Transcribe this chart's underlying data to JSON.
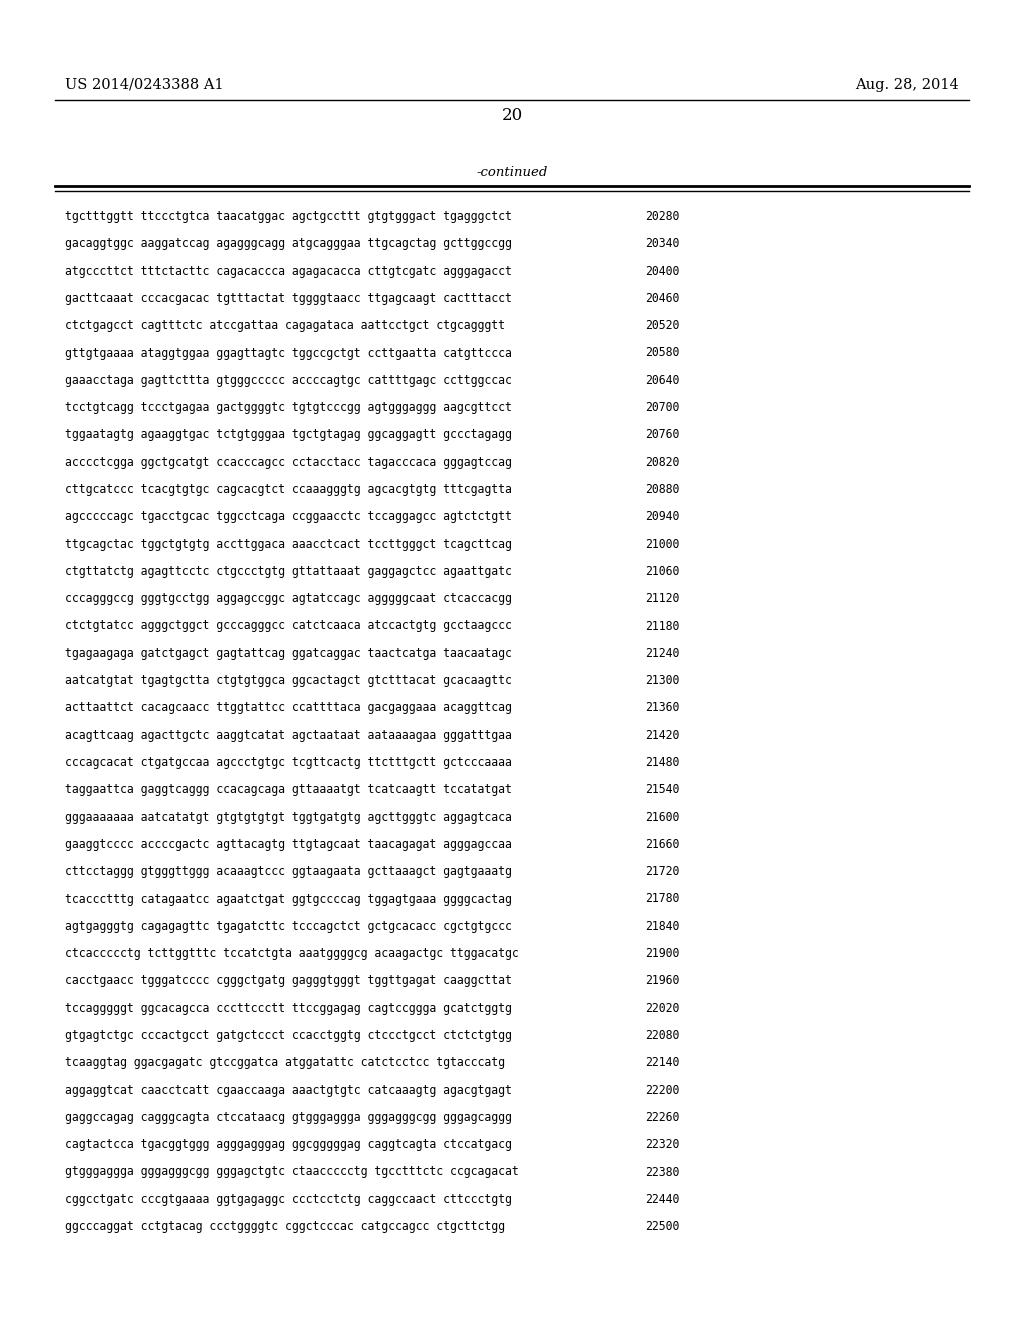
{
  "header_left": "US 2014/0243388 A1",
  "header_right": "Aug. 28, 2014",
  "page_number": "20",
  "continued_label": "-continued",
  "background_color": "#ffffff",
  "text_color": "#000000",
  "lines": [
    [
      "tgctttggtt ttccctgtca taacatggac agctgccttt gtgtgggact tgagggctct",
      "20280"
    ],
    [
      "gacaggtggc aaggatccag agagggcagg atgcagggaa ttgcagctag gcttggccgg",
      "20340"
    ],
    [
      "atgcccttct tttctacttc cagacaccca agagacacca cttgtcgatc agggagacct",
      "20400"
    ],
    [
      "gacttcaaat cccacgacac tgtttactat tggggtaacc ttgagcaagt cactttacct",
      "20460"
    ],
    [
      "ctctgagcct cagtttctc atccgattaa cagagataca aattcctgct ctgcagggtt",
      "20520"
    ],
    [
      "gttgtgaaaa ataggtggaa ggagttagtc tggccgctgt ccttgaatta catgttccca",
      "20580"
    ],
    [
      "gaaacctaga gagttcttta gtgggccccc accccagtgc cattttgagc ccttggccac",
      "20640"
    ],
    [
      "tcctgtcagg tccctgagaa gactggggtc tgtgtcccgg agtgggaggg aagcgttcct",
      "20700"
    ],
    [
      "tggaatagtg agaaggtgac tctgtgggaa tgctgtagag ggcaggagtt gccctagagg",
      "20760"
    ],
    [
      "acccctcgga ggctgcatgt ccacccagcc cctacctacc tagacccaca gggagtccag",
      "20820"
    ],
    [
      "cttgcatccc tcacgtgtgc cagcacgtct ccaaagggtg agcacgtgtg tttcgagtta",
      "20880"
    ],
    [
      "agcccccagc tgacctgcac tggcctcaga ccggaacctc tccaggagcc agtctctgtt",
      "20940"
    ],
    [
      "ttgcagctac tggctgtgtg accttggaca aaacctcact tccttgggct tcagcttcag",
      "21000"
    ],
    [
      "ctgttatctg agagttcctc ctgccctgtg gttattaaat gaggagctcc agaattgatc",
      "21060"
    ],
    [
      "cccagggccg gggtgcctgg aggagccggc agtatccagc agggggcaat ctcaccacgg",
      "21120"
    ],
    [
      "ctctgtatcc agggctggct gcccagggcc catctcaaca atccactgtg gcctaagccc",
      "21180"
    ],
    [
      "tgagaagaga gatctgagct gagtattcag ggatcaggac taactcatga taacaatagc",
      "21240"
    ],
    [
      "aatcatgtat tgagtgctta ctgtgtggca ggcactagct gtctttacat gcacaagttc",
      "21300"
    ],
    [
      "acttaattct cacagcaacc ttggtattcc ccattttaca gacgaggaaa acaggttcag",
      "21360"
    ],
    [
      "acagttcaag agacttgctc aaggtcatat agctaataat aataaaagaa gggatttgaa",
      "21420"
    ],
    [
      "cccagcacat ctgatgccaa agccctgtgc tcgttcactg ttctttgctt gctcccaaaa",
      "21480"
    ],
    [
      "taggaattca gaggtcaggg ccacagcaga gttaaaatgt tcatcaagtt tccatatgat",
      "21540"
    ],
    [
      "gggaaaaaaa aatcatatgt gtgtgtgtgt tggtgatgtg agcttgggtc aggagtcaca",
      "21600"
    ],
    [
      "gaaggtcccc accccgactc agttacagtg ttgtagcaat taacagagat agggagccaa",
      "21660"
    ],
    [
      "cttcctaggg gtgggttggg acaaagtccc ggtaagaata gcttaaagct gagtgaaatg",
      "21720"
    ],
    [
      "tcaccctttg catagaatcc agaatctgat ggtgccccag tggagtgaaa ggggcactag",
      "21780"
    ],
    [
      "agtgagggtg cagagagttc tgagatcttc tcccagctct gctgcacacc cgctgtgccc",
      "21840"
    ],
    [
      "ctcaccccctg tcttggtttc tccatctgta aaatggggcg acaagactgc ttggacatgc",
      "21900"
    ],
    [
      "cacctgaacc tgggatcccc cgggctgatg gagggtgggt tggttgagat caaggcttat",
      "21960"
    ],
    [
      "tccagggggt ggcacagcca cccttccctt ttccggagag cagtccggga gcatctggtg",
      "22020"
    ],
    [
      "gtgagtctgc cccactgcct gatgctccct ccacctggtg ctccctgcct ctctctgtgg",
      "22080"
    ],
    [
      "tcaaggtag ggacgagatc gtccggatca atggatattc catctcctcc tgtacccatg",
      "22140"
    ],
    [
      "aggaggtcat caacctcatt cgaaccaaga aaactgtgtc catcaaagtg agacgtgagt",
      "22200"
    ],
    [
      "gaggccagag cagggcagta ctccataacg gtgggaggga gggagggcgg gggagcaggg",
      "22260"
    ],
    [
      "cagtactcca tgacggtggg agggagggag ggcgggggag caggtcagta ctccatgacg",
      "22320"
    ],
    [
      "gtgggaggga gggagggcgg gggagctgtc ctaaccccctg tgcctttctc ccgcagacat",
      "22380"
    ],
    [
      "cggcctgatc cccgtgaaaa ggtgagaggc ccctcctctg caggccaact cttccctgtg",
      "22440"
    ],
    [
      "ggcccaggat cctgtacag ccctggggtc cggctcccac catgccagcc ctgcttctgg",
      "22500"
    ]
  ]
}
